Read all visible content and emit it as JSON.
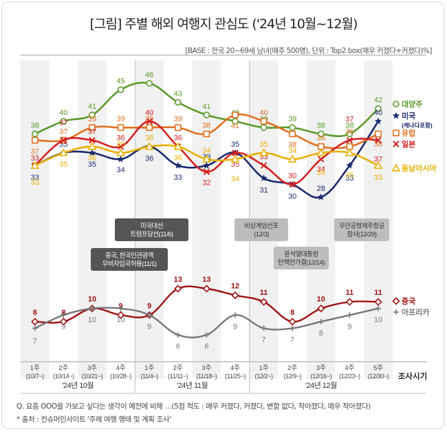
{
  "title": "[그림] 주별 해외 여행지 관심도 ('24년 10월~12월)",
  "base_note": "[BASE : 전국 20~69세 남녀(매주 500명), 단위 : Top2 box(매우 커졌다+커졌다)%]",
  "footnotes": {
    "question": "Q. 요즘 OOO을 가보고 싶다는 생각이 예전에 비해 …(5점  척도 :  매우 커졌다, 커졌다, 변함 없다, 작아졌다, 매우 작아졌다)",
    "source": "* 출처 : 컨슈머인사이트 '주례 여행 행태 및 계획 조사'"
  },
  "chart_data": {
    "type": "line",
    "title": "[그림] 주별 해외 여행지 관심도 ('24년 10월~12월)",
    "xlabel": "조사시기",
    "ylabel": "Top2 box(%)",
    "categories": [
      {
        "week": "1주",
        "date": "(10/7~)"
      },
      {
        "week": "2주",
        "date": "(10/14~)"
      },
      {
        "week": "3주",
        "date": "(10/21~)"
      },
      {
        "week": "4주",
        "date": "(10/28~)"
      },
      {
        "week": "1주",
        "date": "(11/4~)"
      },
      {
        "week": "2주",
        "date": "(11/11~)"
      },
      {
        "week": "3주",
        "date": "(11/18~)"
      },
      {
        "week": "4주",
        "date": "(11/25~)"
      },
      {
        "week": "1주",
        "date": "(12/2~)"
      },
      {
        "week": "2주",
        "date": "(12/9~)"
      },
      {
        "week": "3주",
        "date": "(12/16~)"
      },
      {
        "week": "4주",
        "date": "(12/23~)"
      },
      {
        "week": "5주",
        "date": "(12/30~)"
      }
    ],
    "month_groups": [
      {
        "label": "'24년 10월",
        "count": 4
      },
      {
        "label": "'24년 11월",
        "count": 4
      },
      {
        "label": "'24년 12월",
        "count": 5
      }
    ],
    "panels": [
      {
        "name": "upper",
        "ylim": [
          28,
          46
        ],
        "series": [
          {
            "name": "대양주",
            "color": "#5a9a2a",
            "marker": "circle",
            "values": [
              38,
              40,
              41,
              45,
              46,
              43,
              41,
              40,
              39,
              39,
              38,
              38,
              42
            ]
          },
          {
            "name": "미국",
            "sub": "(캐나다포함)",
            "color": "#1a2a6c",
            "marker": "star",
            "values": [
              33,
              35,
              35,
              34,
              36,
              33,
              33,
              35,
              31,
              30,
              28,
              33,
              40
            ]
          },
          {
            "name": "유럽",
            "color": "#e07020",
            "marker": "square",
            "values": [
              37,
              37,
              39,
              39,
              39,
              39,
              38,
              41,
              40,
              38,
              36,
              36,
              38
            ]
          },
          {
            "name": "일본",
            "color": "#d42020",
            "marker": "x",
            "values": [
              33,
              37,
              37,
              36,
              40,
              36,
              32,
              35,
              33,
              30,
              34,
              37,
              37
            ]
          },
          {
            "name": "동남아시아",
            "color": "#e8b000",
            "marker": "triangle",
            "values": [
              33,
              35,
              36,
              35,
              36,
              36,
              34,
              34,
              35,
              34,
              35,
              35,
              33
            ]
          }
        ]
      },
      {
        "name": "lower",
        "ylim": [
          6,
          13
        ],
        "series": [
          {
            "name": "중국",
            "color": "#a01010",
            "marker": "diamond",
            "values": [
              8,
              8,
              10,
              9,
              9,
              13,
              13,
              12,
              11,
              8,
              10,
              11,
              11
            ]
          },
          {
            "name": "아프리카",
            "color": "#777777",
            "marker": "plus",
            "values": [
              7,
              9,
              10,
              10,
              9,
              6,
              6,
              9,
              7,
              7,
              8,
              9,
              10
            ]
          }
        ]
      }
    ],
    "annotations": [
      {
        "text": [
          "미국대선",
          "트럼프당선(11/6)"
        ],
        "style": "dark",
        "index": 4
      },
      {
        "text": [
          "중국, 한국인관광객",
          "무비자입국허용(11/1)"
        ],
        "style": "dark",
        "index": 3
      },
      {
        "text": [
          "비상계엄선포",
          "(12/3)"
        ],
        "style": "light",
        "index": 8
      },
      {
        "text": [
          "윤석열대통령",
          "탄핵안가결(12/14)"
        ],
        "style": "light",
        "index": 10
      },
      {
        "text": [
          "무안공항제주항공",
          "참사(12/29)"
        ],
        "style": "light",
        "index": 12
      }
    ],
    "grid": false,
    "legend": "right"
  }
}
